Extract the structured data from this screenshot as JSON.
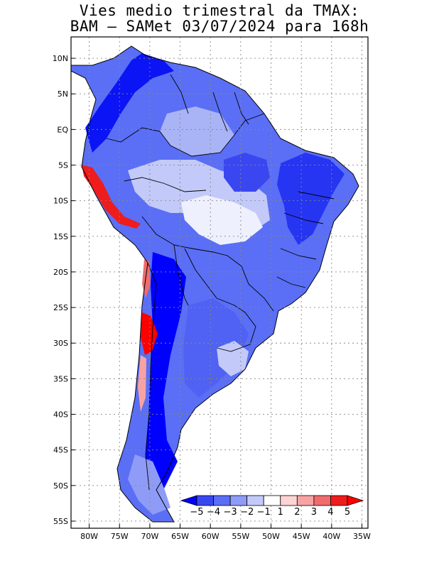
{
  "title_line1": "Vies medio trimestral da TMAX:",
  "title_line2": "BAM – SAMet 03/07/2024  para 168h",
  "map": {
    "lon_range": [
      -83,
      -34
    ],
    "lat_range": [
      -56,
      13
    ],
    "grid": true,
    "lon_ticks": [
      {
        "value": -80,
        "label": "80W"
      },
      {
        "value": -75,
        "label": "75W"
      },
      {
        "value": -70,
        "label": "70W"
      },
      {
        "value": -65,
        "label": "65W"
      },
      {
        "value": -60,
        "label": "60W"
      },
      {
        "value": -55,
        "label": "55W"
      },
      {
        "value": -50,
        "label": "50W"
      },
      {
        "value": -45,
        "label": "45W"
      },
      {
        "value": -40,
        "label": "40W"
      },
      {
        "value": -35,
        "label": "35W"
      }
    ],
    "lat_ticks": [
      {
        "value": 10,
        "label": "10N"
      },
      {
        "value": 5,
        "label": "5N"
      },
      {
        "value": 0,
        "label": "EQ"
      },
      {
        "value": -5,
        "label": "5S"
      },
      {
        "value": -10,
        "label": "10S"
      },
      {
        "value": -15,
        "label": "15S"
      },
      {
        "value": -20,
        "label": "20S"
      },
      {
        "value": -25,
        "label": "25S"
      },
      {
        "value": -30,
        "label": "30S"
      },
      {
        "value": -35,
        "label": "35S"
      },
      {
        "value": -40,
        "label": "40S"
      },
      {
        "value": -45,
        "label": "45S"
      },
      {
        "value": -50,
        "label": "50S"
      },
      {
        "value": -55,
        "label": "55S"
      }
    ]
  },
  "colorbar": {
    "labels": [
      "−5",
      "−4",
      "−3",
      "−2",
      "−1",
      "1",
      "2",
      "3",
      "4",
      "5"
    ],
    "colors": [
      "#0000ff",
      "#3a47f0",
      "#5a6ff5",
      "#8e9cf7",
      "#c3caf9",
      "#ffffff",
      "#fcd4d4",
      "#f8a3a3",
      "#f06c6c",
      "#ee1c1c",
      "#ff0000"
    ]
  }
}
